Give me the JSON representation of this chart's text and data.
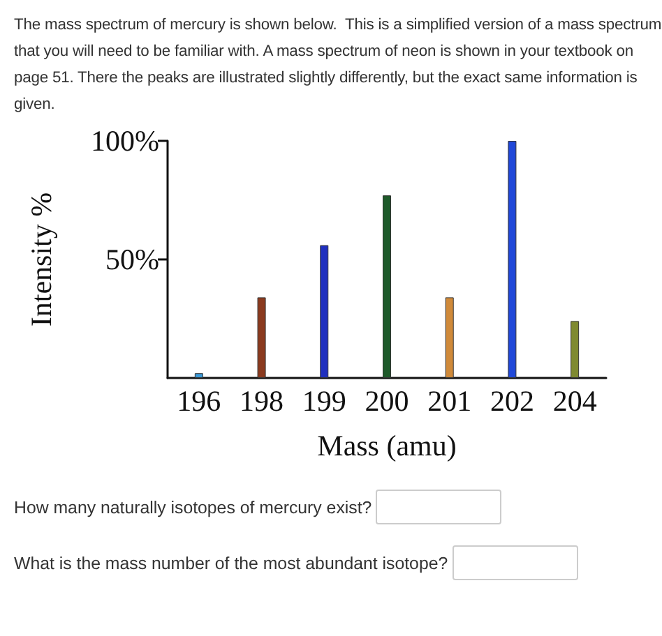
{
  "chart_data": {
    "type": "bar",
    "xlabel": "Mass (amu)",
    "ylabel": "Intensity %",
    "categories": [
      "196",
      "198",
      "199",
      "200",
      "201",
      "202",
      "204"
    ],
    "values": [
      2,
      34,
      56,
      77,
      34,
      100,
      24
    ],
    "colors": [
      "#3a9ad9",
      "#8b3a1e",
      "#1f2fbf",
      "#1e5a2a",
      "#d08a3a",
      "#2048d8",
      "#7f8a30"
    ],
    "ylim": [
      0,
      100
    ],
    "yticks": [
      {
        "value": 50,
        "label": "50%"
      },
      {
        "value": 100,
        "label": "100%"
      }
    ],
    "grid": false,
    "annotations": [
      "The mass spectrum of mercury is shown below.  This is a simplified version of a mass spectrum that you will need to be familiar with. A mass spectrum of neon is shown in your textbook on page 51. There the peaks are illustrated slightly differently, but the exact same information is given.",
      "How many naturally isotopes of mercury exist?",
      "What is the mass number of the most abundant isotope?"
    ]
  }
}
